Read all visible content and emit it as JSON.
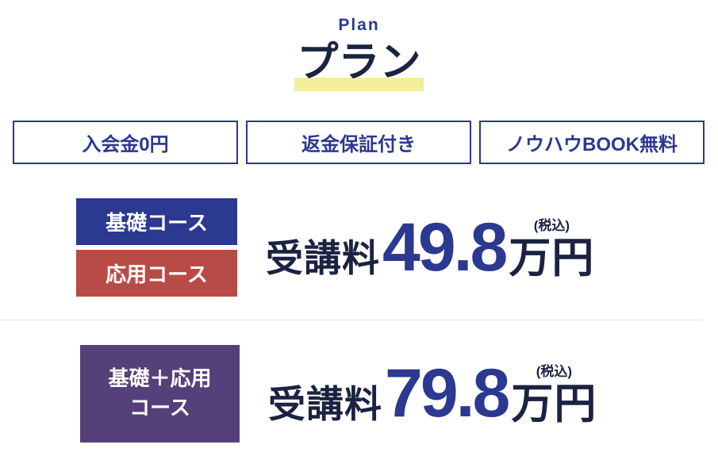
{
  "header": {
    "eyebrow": "Plan",
    "title": "プラン"
  },
  "features": [
    {
      "label": "入会金0円"
    },
    {
      "label": "返金保証付き"
    },
    {
      "label": "ノウハウBOOK無料"
    }
  ],
  "plans": [
    {
      "badges": [
        {
          "label": "基礎コース"
        },
        {
          "label": "応用コース"
        }
      ],
      "price_prefix": "受講料",
      "price_value": "49.8",
      "price_unit": "万円",
      "tax_note": "(税込)"
    },
    {
      "badges": [
        {
          "label": "基礎＋応用\nコース"
        }
      ],
      "price_prefix": "受講料",
      "price_value": "79.8",
      "price_unit": "万円",
      "tax_note": "(税込)"
    }
  ],
  "colors": {
    "blue": "#2b3990",
    "navy": "#1b2342",
    "red": "#b94b46",
    "purple": "#564079",
    "yellow": "#f2ee9b",
    "divider": "#dcdcdc",
    "background": "#ffffff",
    "badge_text": "#ffffff"
  }
}
